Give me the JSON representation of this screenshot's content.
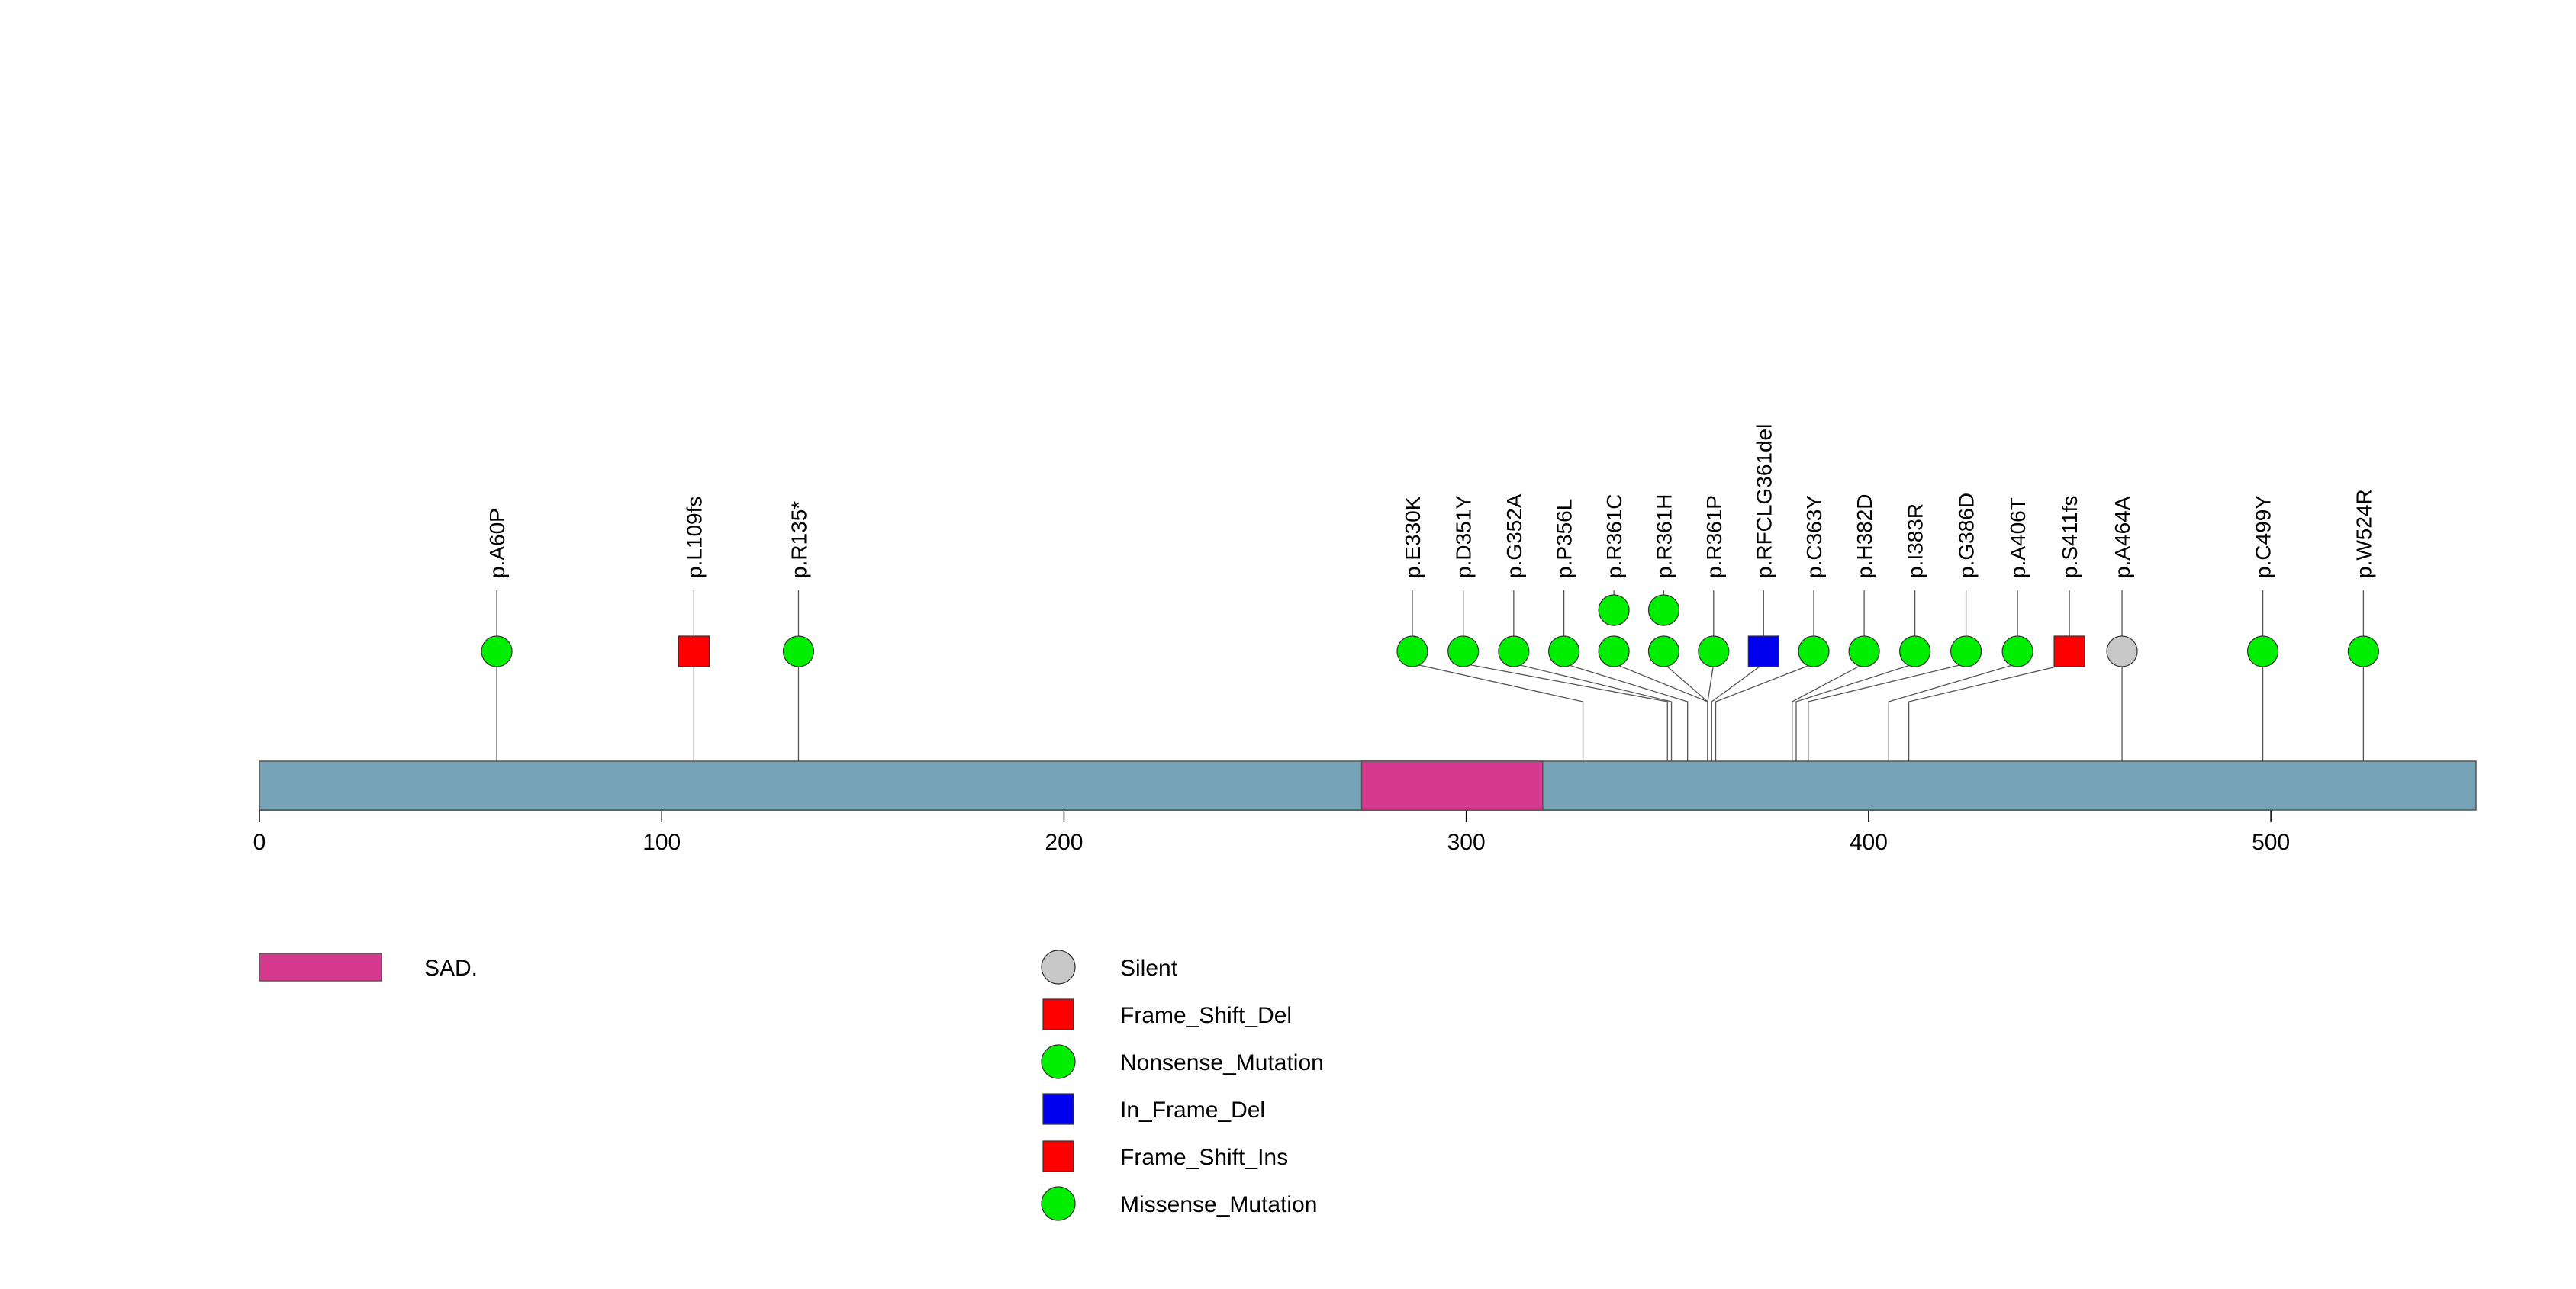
{
  "chart_data": {
    "type": "lollipop",
    "protein_length": 551,
    "axis": {
      "xlim": [
        0,
        551
      ],
      "ticks": [
        0,
        100,
        200,
        300,
        400,
        500
      ],
      "tick_labels": [
        "0",
        "100",
        "200",
        "300",
        "400",
        "500"
      ]
    },
    "domains": [
      {
        "name": "SAD.",
        "start": 274,
        "end": 319,
        "color": "#d63a8e"
      }
    ],
    "backbone_color": "#76a3b5",
    "mutations": [
      {
        "label": "p.A60P",
        "position": 59,
        "type": "Nonsense_Mutation",
        "count": 1
      },
      {
        "label": "p.L109fs",
        "position": 108,
        "type": "Frame_Shift_Del",
        "count": 1
      },
      {
        "label": "p.R135*",
        "position": 134,
        "type": "Nonsense_Mutation",
        "count": 1
      },
      {
        "label": "p.E330K",
        "position": 329,
        "type": "Missense_Mutation",
        "count": 1
      },
      {
        "label": "p.D351Y",
        "position": 350,
        "type": "Missense_Mutation",
        "count": 1
      },
      {
        "label": "p.G352A",
        "position": 351,
        "type": "Missense_Mutation",
        "count": 1
      },
      {
        "label": "p.P356L",
        "position": 355,
        "type": "Missense_Mutation",
        "count": 1
      },
      {
        "label": "p.R361C",
        "position": 360,
        "type": "Missense_Mutation",
        "count": 2
      },
      {
        "label": "p.R361H",
        "position": 360,
        "type": "Missense_Mutation",
        "count": 2
      },
      {
        "label": "p.R361P",
        "position": 360,
        "type": "Missense_Mutation",
        "count": 1
      },
      {
        "label": "p.RFCLG361del",
        "position": 361,
        "type": "In_Frame_Del",
        "count": 1
      },
      {
        "label": "p.C363Y",
        "position": 362,
        "type": "Missense_Mutation",
        "count": 1
      },
      {
        "label": "p.H382D",
        "position": 381,
        "type": "Missense_Mutation",
        "count": 1
      },
      {
        "label": "p.I383R",
        "position": 382,
        "type": "Missense_Mutation",
        "count": 1
      },
      {
        "label": "p.G386D",
        "position": 385,
        "type": "Missense_Mutation",
        "count": 1
      },
      {
        "label": "p.A406T",
        "position": 405,
        "type": "Missense_Mutation",
        "count": 1
      },
      {
        "label": "p.S411fs",
        "position": 410,
        "type": "Frame_Shift_Del",
        "count": 1
      },
      {
        "label": "p.A464A",
        "position": 463,
        "type": "Silent",
        "count": 1
      },
      {
        "label": "p.C499Y",
        "position": 498,
        "type": "Missense_Mutation",
        "count": 1
      },
      {
        "label": "p.W524R",
        "position": 523,
        "type": "Missense_Mutation",
        "count": 1
      }
    ],
    "legend": {
      "domain_entries": [
        {
          "name": "SAD.",
          "color": "#d63a8e"
        }
      ],
      "mutation_entries": [
        {
          "name": "Silent",
          "shape": "circle",
          "color": "#c8c8c8"
        },
        {
          "name": "Frame_Shift_Del",
          "shape": "square",
          "color": "#ff0000"
        },
        {
          "name": "Nonsense_Mutation",
          "shape": "circle",
          "color": "#00ee00"
        },
        {
          "name": "In_Frame_Del",
          "shape": "square",
          "color": "#0000ee"
        },
        {
          "name": "Frame_Shift_Ins",
          "shape": "square",
          "color": "#ff0000"
        },
        {
          "name": "Missense_Mutation",
          "shape": "circle",
          "color": "#00ee00"
        }
      ]
    },
    "type_styles": {
      "Silent": {
        "shape": "circle",
        "color": "#c8c8c8"
      },
      "Frame_Shift_Del": {
        "shape": "square",
        "color": "#ff0000"
      },
      "Nonsense_Mutation": {
        "shape": "circle",
        "color": "#00ee00"
      },
      "In_Frame_Del": {
        "shape": "square",
        "color": "#0000ee"
      },
      "Frame_Shift_Ins": {
        "shape": "square",
        "color": "#ff0000"
      },
      "Missense_Mutation": {
        "shape": "circle",
        "color": "#00ee00"
      }
    }
  }
}
